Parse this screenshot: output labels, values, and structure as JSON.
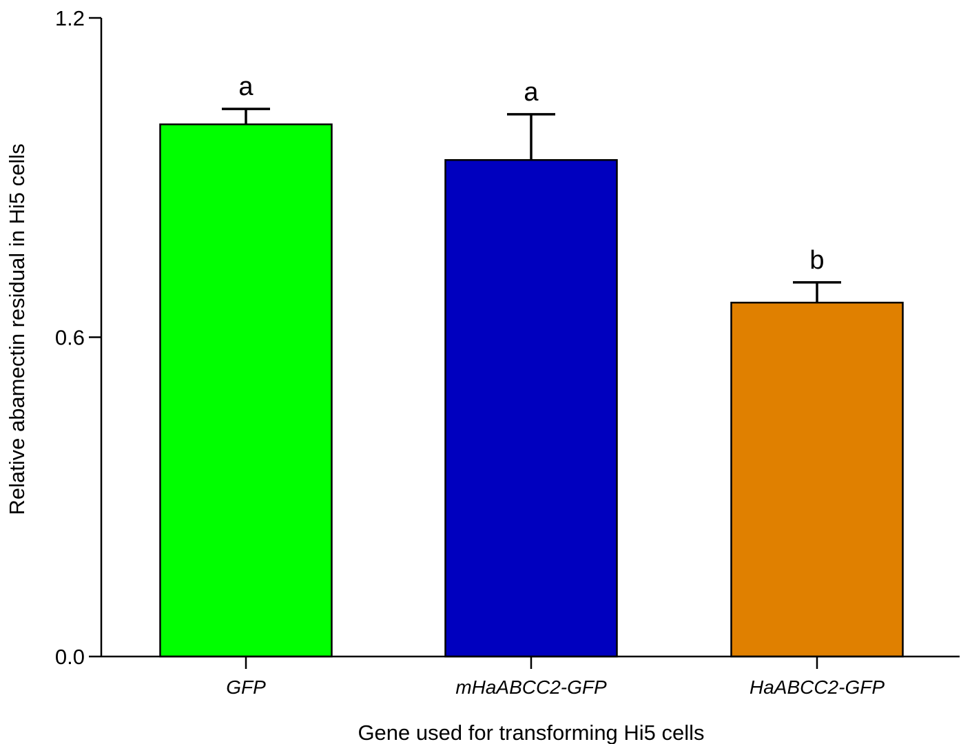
{
  "chart_data": {
    "type": "bar",
    "title": "",
    "xlabel": "Gene used for transforming Hi5 cells",
    "ylabel": "Relative abamectin residual in Hi5 cells",
    "ylim": [
      0,
      1.2
    ],
    "yticks": [
      "0.0",
      "0.6",
      "1.2"
    ],
    "grid": false,
    "legend": "none",
    "categories": [
      "GFP",
      "mHaABCC2-GFP",
      "HaABCC2-GFP"
    ],
    "values": [
      1.0,
      0.933,
      0.665
    ],
    "errors": [
      0.029,
      0.086,
      0.038
    ],
    "significance": [
      "a",
      "a",
      "b"
    ],
    "colors": [
      "#00ff00",
      "#0000bf",
      "#e08000"
    ]
  }
}
